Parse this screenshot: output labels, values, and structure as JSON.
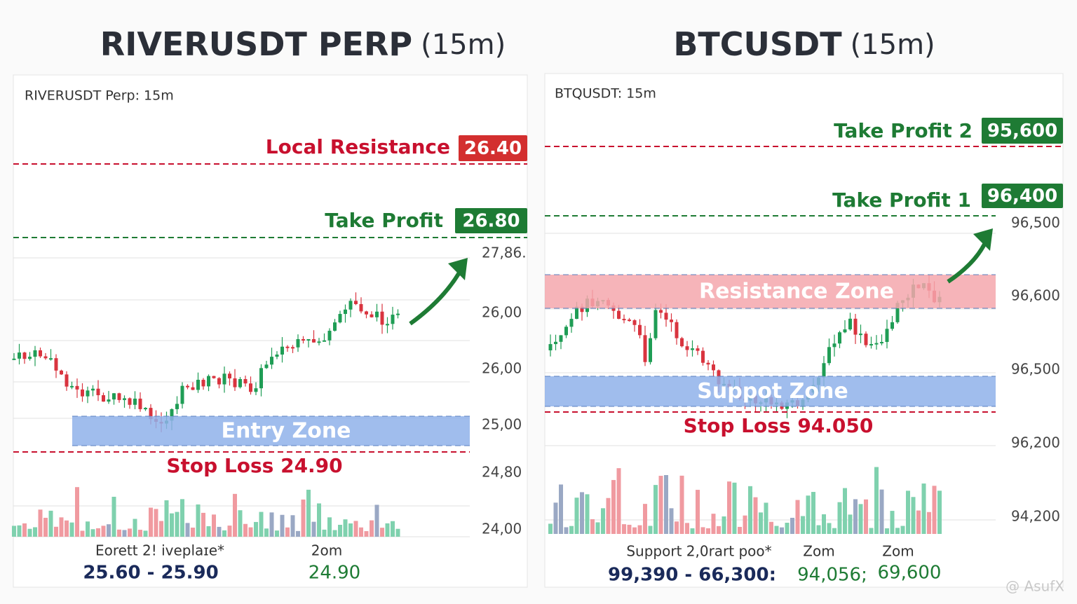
{
  "left": {
    "title": "RIVERUSDT PERP",
    "interval": "(15m)",
    "subtitle": "RIVERUSDT Perp: 15m",
    "levels": [
      {
        "label": "Local Resistance",
        "value": "26.40"
      },
      {
        "label": "Take Profit",
        "value": "26.80"
      }
    ],
    "axis_labels": [
      "27,86.",
      "26,00",
      "26,00",
      "25,00",
      "24,80",
      "24,00"
    ],
    "zones": [
      "Entry Zone"
    ],
    "stop_loss": "Stop Loss 24.90",
    "footer": {
      "labels": [
        "Eorett 2! iveplaɪe*",
        "2om"
      ],
      "values": [
        "25.60 - 25.90",
        "24.90"
      ]
    }
  },
  "right": {
    "title": "BTCUSDT",
    "interval": "(15m)",
    "subtitle": "BTQUSDT: 15m",
    "levels": [
      {
        "label": "Take Profit 2",
        "value": "95,600"
      },
      {
        "label": "Take Profit 1",
        "value": "96,400"
      }
    ],
    "axis_labels": [
      "96,500",
      "96,600",
      "96,500",
      "96,200",
      "94,200"
    ],
    "zones": [
      "Resistance Zone",
      "Suppot Zone"
    ],
    "stop_loss": "Stop Loss 94.050",
    "footer": {
      "labels": [
        "Support 2,0rart poo*",
        "Zom",
        "Zom"
      ],
      "values": [
        "99,390 - 66,300:",
        "94,056;",
        "69,600"
      ]
    }
  },
  "watermark": "@ AsufX"
}
